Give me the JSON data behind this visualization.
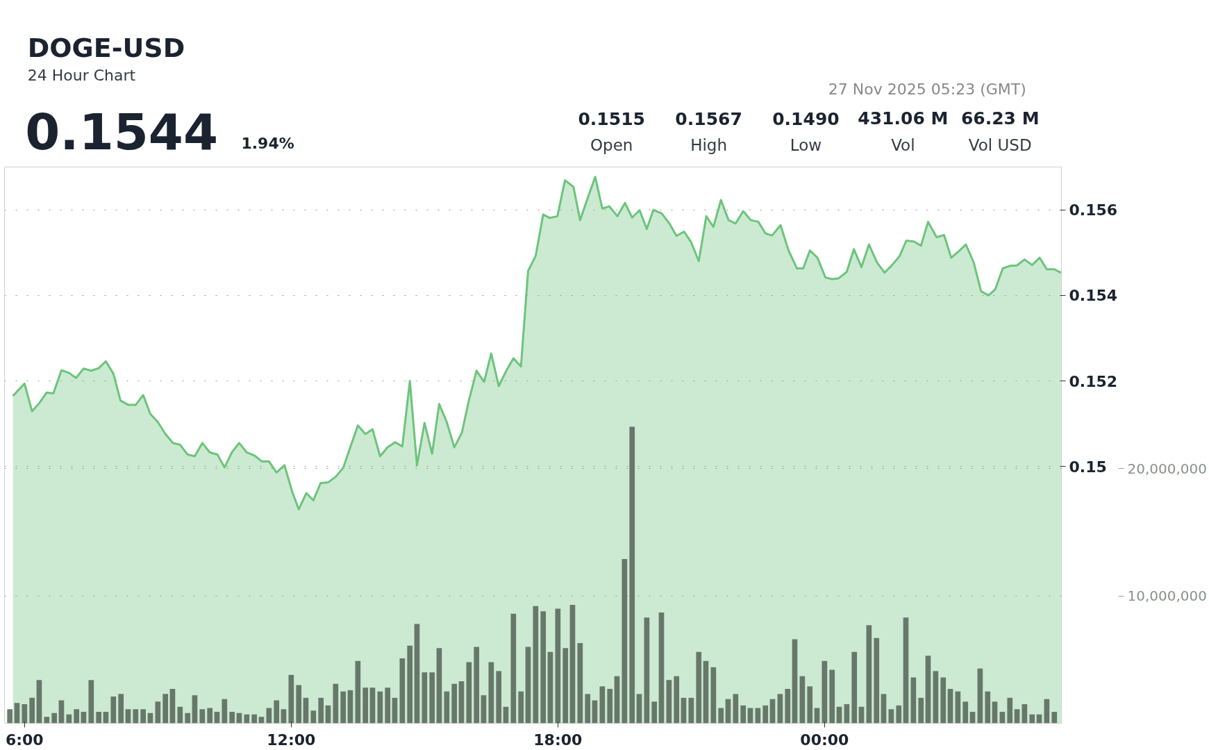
{
  "chart_data": {
    "type": "area",
    "title": "DOGE-USD",
    "subtitle": "24 Hour Chart",
    "annotations": [
      "0.1544",
      "1.94%",
      "27 Nov 2025 05:23 (GMT)",
      "0.1515",
      "Open",
      "0.1567",
      "High",
      "0.1490",
      "Low",
      "431.06 M",
      "Vol",
      "66.23 M",
      "Vol USD"
    ],
    "xlim": [
      5.55,
      29.33
    ],
    "xticks": [
      {
        "value": 6,
        "label": "6:00"
      },
      {
        "value": 12,
        "label": "12:00"
      },
      {
        "value": 18,
        "label": "18:00"
      },
      {
        "value": 24,
        "label": "00:00"
      }
    ],
    "ylim": [
      0.144,
      0.157
    ],
    "yticks": [
      0.15,
      0.152,
      0.154,
      0.156
    ],
    "y2lim": [
      0,
      43700000
    ],
    "y2ticks": [
      {
        "value": 10000000,
        "label": "10,000,000"
      },
      {
        "value": 20000000,
        "label": "20,000,000"
      }
    ],
    "grid": "y",
    "series": [
      {
        "color": "#6cc47c",
        "x": [
          5.74,
          6.0,
          6.17,
          6.33,
          6.5,
          6.65,
          6.83,
          7.0,
          7.16,
          7.33,
          7.5,
          7.67,
          7.83,
          8.0,
          8.16,
          8.34,
          8.5,
          8.67,
          8.83,
          9.0,
          9.17,
          9.34,
          9.5,
          9.67,
          9.83,
          10.0,
          10.17,
          10.34,
          10.5,
          10.67,
          10.83,
          11.0,
          11.17,
          11.34,
          11.5,
          11.67,
          11.85,
          12.02,
          12.17,
          12.34,
          12.5,
          12.66,
          12.83,
          13.0,
          13.17,
          13.33,
          13.5,
          13.67,
          13.83,
          14.0,
          14.17,
          14.34,
          14.5,
          14.67,
          14.83,
          15.0,
          15.17,
          15.33,
          15.5,
          15.67,
          15.84,
          16.0,
          16.17,
          16.34,
          16.5,
          16.67,
          16.84,
          17.0,
          17.17,
          17.33,
          17.5,
          17.67,
          17.82,
          17.99,
          18.16,
          18.35,
          18.5,
          18.67,
          18.84,
          19.0,
          19.16,
          19.34,
          19.51,
          19.67,
          19.84,
          20.0,
          20.15,
          20.34,
          20.51,
          20.67,
          20.84,
          21.0,
          21.17,
          21.34,
          21.5,
          21.67,
          21.84,
          22.0,
          22.17,
          22.34,
          22.51,
          22.67,
          22.82,
          23.01,
          23.19,
          23.38,
          23.52,
          23.67,
          23.84,
          24.02,
          24.17,
          24.32,
          24.5,
          24.66,
          24.83,
          25.0,
          25.18,
          25.35,
          25.52,
          25.69,
          25.84,
          26.01,
          26.17,
          26.33,
          26.52,
          26.69,
          26.85,
          27.02,
          27.18,
          27.36,
          27.52,
          27.69,
          27.84,
          28.01,
          28.17,
          28.33,
          28.5,
          28.67,
          28.84,
          29.0,
          29.17,
          29.32
        ],
        "values": [
          0.15165,
          0.15194,
          0.15129,
          0.15148,
          0.15173,
          0.15171,
          0.15225,
          0.15219,
          0.15207,
          0.15229,
          0.15224,
          0.1523,
          0.15246,
          0.15217,
          0.15154,
          0.15144,
          0.15144,
          0.15167,
          0.15123,
          0.15104,
          0.15076,
          0.15055,
          0.15051,
          0.15028,
          0.15024,
          0.15055,
          0.15033,
          0.15028,
          0.14998,
          0.15034,
          0.15055,
          0.15033,
          0.15026,
          0.15012,
          0.15012,
          0.14986,
          0.15003,
          0.14942,
          0.149,
          0.14938,
          0.14921,
          0.14961,
          0.14963,
          0.14976,
          0.14997,
          0.15045,
          0.15096,
          0.15076,
          0.15087,
          0.15024,
          0.15045,
          0.15057,
          0.15047,
          0.152,
          0.15003,
          0.15102,
          0.1503,
          0.15146,
          0.15104,
          0.15045,
          0.15079,
          0.15155,
          0.15224,
          0.15198,
          0.15264,
          0.15188,
          0.15224,
          0.15253,
          0.15234,
          0.15457,
          0.15492,
          0.15589,
          0.15581,
          0.15585,
          0.15669,
          0.15654,
          0.15576,
          0.15627,
          0.15677,
          0.15603,
          0.15608,
          0.15585,
          0.15616,
          0.15582,
          0.15599,
          0.15555,
          0.156,
          0.15591,
          0.15568,
          0.15539,
          0.15549,
          0.15524,
          0.1548,
          0.15585,
          0.1556,
          0.15623,
          0.15576,
          0.15568,
          0.15597,
          0.15576,
          0.15572,
          0.15545,
          0.1554,
          0.15564,
          0.15505,
          0.15463,
          0.15463,
          0.15505,
          0.15488,
          0.15442,
          0.15438,
          0.1544,
          0.15455,
          0.15508,
          0.15466,
          0.15519,
          0.15477,
          0.15453,
          0.15471,
          0.15492,
          0.15528,
          0.15526,
          0.15516,
          0.15572,
          0.15536,
          0.15541,
          0.15488,
          0.15503,
          0.15519,
          0.15476,
          0.1541,
          0.154,
          0.15414,
          0.15463,
          0.15469,
          0.1547,
          0.15484,
          0.15471,
          0.15488,
          0.15461,
          0.15461,
          0.15453
        ]
      },
      {
        "type": "bar",
        "axis": "y2",
        "color": "#5c6b5f",
        "x": [
          5.67,
          5.83,
          6,
          6.17,
          6.33,
          6.5,
          6.67,
          6.83,
          7,
          7.17,
          7.33,
          7.5,
          7.67,
          7.83,
          8,
          8.17,
          8.33,
          8.5,
          8.67,
          8.83,
          9,
          9.17,
          9.33,
          9.5,
          9.67,
          9.83,
          10,
          10.17,
          10.33,
          10.5,
          10.67,
          10.83,
          11,
          11.17,
          11.33,
          11.5,
          11.67,
          11.83,
          12,
          12.17,
          12.33,
          12.5,
          12.67,
          12.83,
          13,
          13.17,
          13.33,
          13.5,
          13.67,
          13.83,
          14,
          14.17,
          14.33,
          14.5,
          14.67,
          14.83,
          15,
          15.17,
          15.33,
          15.5,
          15.67,
          15.83,
          16,
          16.17,
          16.33,
          16.5,
          16.67,
          16.83,
          17,
          17.17,
          17.33,
          17.5,
          17.67,
          17.83,
          18,
          18.17,
          18.33,
          18.5,
          18.67,
          18.83,
          19,
          19.17,
          19.33,
          19.5,
          19.67,
          19.83,
          20,
          20.17,
          20.33,
          20.5,
          20.67,
          20.83,
          21,
          21.17,
          21.33,
          21.5,
          21.67,
          21.83,
          22,
          22.17,
          22.33,
          22.5,
          22.67,
          22.83,
          23,
          23.17,
          23.33,
          23.5,
          23.67,
          23.83,
          24,
          24.17,
          24.33,
          24.5,
          24.67,
          24.83,
          25,
          25.17,
          25.33,
          25.5,
          25.67,
          25.83,
          26,
          26.17,
          26.33,
          26.5,
          26.67,
          26.83,
          27,
          27.17,
          27.33,
          27.5,
          27.67,
          27.83,
          28,
          28.17,
          28.33,
          28.5,
          28.67,
          28.83,
          29,
          29.17
        ],
        "values": [
          1100000.0,
          1600000.0,
          1500000.0,
          2000000.0,
          3400000.0,
          500000.0,
          800000.0,
          1800000.0,
          700000.0,
          1100000.0,
          900000.0,
          3400000.0,
          900000.0,
          900000.0,
          2100000.0,
          2300000.0,
          1100000.0,
          1100000.0,
          1100000.0,
          800000.0,
          1700000.0,
          2300000.0,
          2700000.0,
          1300000.0,
          800000.0,
          2200000.0,
          1100000.0,
          1200000.0,
          900000.0,
          1900000.0,
          900000.0,
          800000.0,
          700000.0,
          700000.0,
          500000.0,
          1200000.0,
          1800000.0,
          1100000.0,
          3800000.0,
          3000000.0,
          2000000.0,
          1000000.0,
          2000000.0,
          1400000.0,
          3100000.0,
          2500000.0,
          2600000.0,
          4900000.0,
          2800000.0,
          2800000.0,
          2500000.0,
          2800000.0,
          2000000.0,
          5100000.0,
          6100000.0,
          7800000.0,
          4000000.0,
          4000000.0,
          5900000.0,
          2500000.0,
          3100000.0,
          3300000.0,
          4800000.0,
          6000000.0,
          2200000.0,
          4800000.0,
          4100000.0,
          1300000.0,
          8600000.0,
          2500000.0,
          6000000.0,
          9200000.0,
          8800000.0,
          5600000.0,
          9000000.0,
          5900000.0,
          9300000.0,
          6300000.0,
          2300000.0,
          1800000.0,
          2900000.0,
          2700000.0,
          3700000.0,
          12900000.0,
          23300000.0,
          2300000.0,
          8300000.0,
          1700000.0,
          8700000.0,
          3400000.0,
          3700000.0,
          2000000.0,
          2000000.0,
          5600000.0,
          4900000.0,
          4400000.0,
          1200000.0,
          1900000.0,
          2300000.0,
          1400000.0,
          1200000.0,
          1200000.0,
          1400000.0,
          1900000.0,
          2300000.0,
          2700000.0,
          6600000.0,
          3700000.0,
          2900000.0,
          1200000.0,
          4900000.0,
          4200000.0,
          1300000.0,
          1500000.0,
          5600000.0,
          1300000.0,
          7700000.0,
          6700000.0,
          2300000.0,
          1100000.0,
          1400000.0,
          8300000.0,
          3600000.0,
          2000000.0,
          5300000.0,
          4100000.0,
          3600000.0,
          2700000.0,
          2500000.0,
          1700000.0,
          900000.0,
          4300000.0,
          2500000.0,
          1700000.0,
          900000.0,
          2000000.0,
          1100000.0,
          1500000.0,
          700000.0,
          700000.0,
          1900000.0,
          900000.0
        ]
      }
    ]
  }
}
